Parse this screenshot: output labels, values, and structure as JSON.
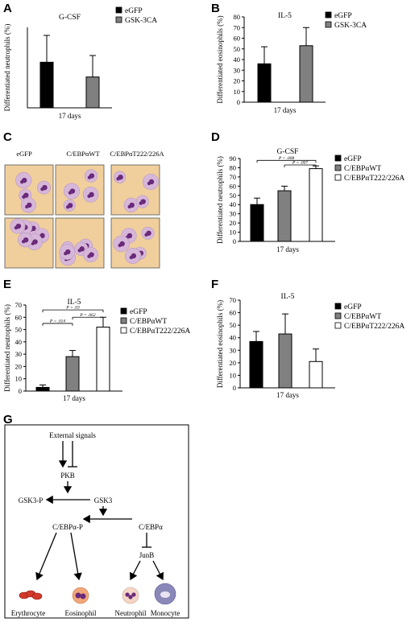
{
  "panels": {
    "A": "A",
    "B": "B",
    "C": "C",
    "D": "D",
    "E": "E",
    "F": "F",
    "G": "G"
  },
  "colors": {
    "egfp": "#000000",
    "mid": "#808080",
    "white": "#ffffff",
    "cell_bg": "#f1cf9c",
    "cell_stain": "#6a2a7a"
  },
  "chart_data": [
    {
      "id": "A",
      "type": "bar",
      "title": "G-CSF",
      "ylabel": "Differentiated neutrophils (%)",
      "xlabel": "17 days",
      "ylim": [
        0,
        60
      ],
      "yticks": [],
      "series": [
        {
          "name": "eGFP",
          "value": 34,
          "err": 20,
          "color": "#000000"
        },
        {
          "name": "GSK-3CA",
          "value": 23,
          "err": 16,
          "color": "#808080"
        }
      ],
      "annotations": []
    },
    {
      "id": "B",
      "type": "bar",
      "title": "IL-5",
      "ylabel": "Differentiated eosinophils (%)",
      "xlabel": "17 days",
      "ylim": [
        0,
        80
      ],
      "yticks": [
        "0",
        "10",
        "20",
        "30",
        "40",
        "50",
        "60",
        "70",
        "80"
      ],
      "series": [
        {
          "name": "eGFP",
          "value": 36,
          "err": 16,
          "color": "#000000"
        },
        {
          "name": "GSK-3CA",
          "value": 53,
          "err": 17,
          "color": "#808080"
        }
      ],
      "annotations": []
    },
    {
      "id": "D",
      "type": "bar",
      "title": "G-CSF",
      "ylabel": "Differentiated neutrophils (%)",
      "xlabel": "17 days",
      "ylim": [
        0,
        90
      ],
      "yticks": [
        "0",
        "10",
        "20",
        "30",
        "40",
        "50",
        "60",
        "70",
        "80",
        "90"
      ],
      "series": [
        {
          "name": "eGFP",
          "value": 40,
          "err": 7,
          "color": "#000000"
        },
        {
          "name": "C/EBPαWT",
          "value": 55,
          "err": 5,
          "color": "#808080"
        },
        {
          "name": "C/EBPαT222/226A",
          "value": 79,
          "err": 3,
          "color": "#ffffff"
        }
      ],
      "annotations": [
        {
          "from": 0,
          "to": 2,
          "label": "P = .008",
          "value": 88
        },
        {
          "from": 1,
          "to": 2,
          "label": "P = .007",
          "value": 83
        }
      ]
    },
    {
      "id": "E",
      "type": "bar",
      "title": "IL-5",
      "ylabel": "Differentiated neutrophils (%)",
      "xlabel": "17 days",
      "ylim": [
        0,
        70
      ],
      "yticks": [
        "0",
        "10",
        "20",
        "30",
        "40",
        "50",
        "60",
        "70"
      ],
      "series": [
        {
          "name": "eGFP",
          "value": 3,
          "err": 2,
          "color": "#000000"
        },
        {
          "name": "C/EBPαWT",
          "value": 28,
          "err": 5,
          "color": "#808080"
        },
        {
          "name": "C/EBPαT222/226A",
          "value": 52,
          "err": 8,
          "color": "#ffffff"
        }
      ],
      "annotations": [
        {
          "from": 0,
          "to": 2,
          "label": "P = .03",
          "value": 66
        },
        {
          "from": 0,
          "to": 1,
          "label": "P = .014",
          "value": 55
        },
        {
          "from": 1,
          "to": 2,
          "label": "P = .062",
          "value": 60
        }
      ]
    },
    {
      "id": "F",
      "type": "bar",
      "title": "IL-5",
      "ylabel": "Differentiated eosinophils (%)",
      "xlabel": "17 days",
      "ylim": [
        0,
        70
      ],
      "yticks": [
        "0",
        "10",
        "20",
        "30",
        "40",
        "50",
        "60",
        "70"
      ],
      "series": [
        {
          "name": "eGFP",
          "value": 37,
          "err": 8,
          "color": "#000000"
        },
        {
          "name": "C/EBPαWT",
          "value": 43,
          "err": 16,
          "color": "#808080"
        },
        {
          "name": "C/EBPαT222/226A",
          "value": 21,
          "err": 10,
          "color": "#ffffff"
        }
      ],
      "annotations": []
    }
  ],
  "micrographs": {
    "columns": [
      "eGFP",
      "C/EBPαWT",
      "C/EBPαT222/226A"
    ]
  },
  "diagram": {
    "external": "External signals",
    "pkb": "PKB",
    "gsk3p": "GSK3-P",
    "gsk3": "GSK3",
    "cebpap": "C/EBPα-P",
    "cebpa": "C/EBPα",
    "junb": "JunB",
    "cells": [
      "Erythrocyte",
      "Eosinophil",
      "Neutrophil",
      "Monocyte"
    ]
  }
}
